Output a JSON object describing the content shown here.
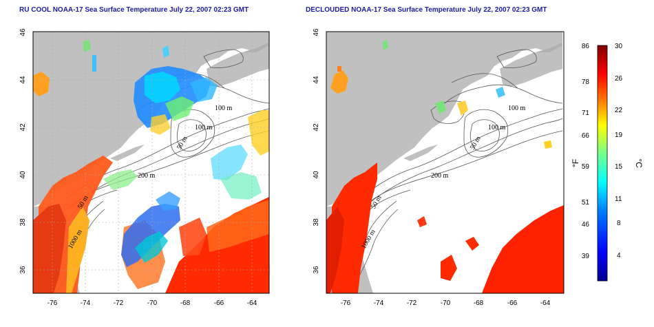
{
  "panels": [
    {
      "title": "RU COOL NOAA-17 Sea Surface Temperature July 22, 2007 02:23 GMT",
      "x_ticks": [
        "-76",
        "-74",
        "-72",
        "-70",
        "-68",
        "-66",
        "-64"
      ],
      "y_ticks": [
        "46",
        "44",
        "42",
        "40",
        "38",
        "36"
      ]
    },
    {
      "title": "DECLOUDED NOAA-17 Sea Surface Temperature July 22, 2007 02:23 GMT",
      "x_ticks": [
        "-76",
        "-74",
        "-72",
        "-70",
        "-68",
        "-66",
        "-64"
      ],
      "y_ticks": [
        "46",
        "44",
        "42",
        "40",
        "38",
        "36"
      ]
    }
  ],
  "contour_labels": [
    "100 m",
    "100 m",
    "50 m",
    "200 m",
    "50 m",
    "1000 m"
  ],
  "colorbar": {
    "fahrenheit_label": "°F",
    "celsius_label": "°C",
    "fahrenheit_ticks": [
      "86",
      "78",
      "71",
      "66",
      "59",
      "51",
      "46",
      "39"
    ],
    "celsius_ticks": [
      "30",
      "26",
      "22",
      "19",
      "15",
      "11",
      "8",
      "4"
    ],
    "range_celsius": [
      0,
      30
    ],
    "colors": [
      "#00008f",
      "#0000ff",
      "#0080ff",
      "#00ffff",
      "#80ff80",
      "#ffff00",
      "#ff8000",
      "#ff0000",
      "#800000"
    ]
  },
  "colors": {
    "land": "#c0c0c0",
    "ocean_no_data": "#ffffff",
    "title": "#1a1aa6"
  }
}
